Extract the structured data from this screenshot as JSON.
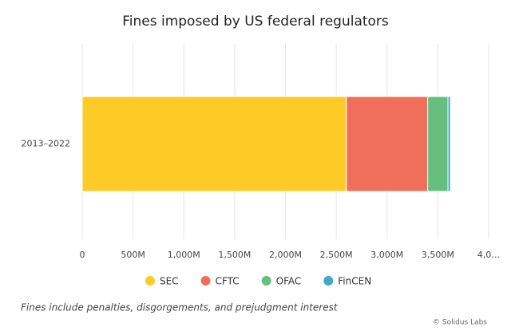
{
  "chart_data": {
    "type": "bar",
    "orientation": "horizontal",
    "stacked": true,
    "title": "Fines imposed by US federal regulators",
    "categories": [
      "2013–2022"
    ],
    "series": [
      {
        "name": "SEC",
        "color": "#fdca26",
        "values": [
          2600
        ]
      },
      {
        "name": "CFTC",
        "color": "#ef6f5a",
        "values": [
          800
        ]
      },
      {
        "name": "OFAC",
        "color": "#66bf7f",
        "values": [
          200
        ]
      },
      {
        "name": "FinCEN",
        "color": "#3fa9c9",
        "values": [
          24
        ]
      }
    ],
    "xlim": [
      0,
      4000
    ],
    "xticks": [
      0,
      {
        "value": 500,
        "label": "500M"
      },
      {
        "value": 1000,
        "label": "1,000M"
      },
      {
        "value": 1500,
        "label": "1,500M"
      },
      {
        "value": 2000,
        "label": "2,000M"
      },
      {
        "value": 2500,
        "label": "2,500M"
      },
      {
        "value": 3000,
        "label": "3,000M"
      },
      {
        "value": 3500,
        "label": "3,500M"
      },
      {
        "value": 4000,
        "label": "4,0…"
      }
    ],
    "grid": true,
    "legend": "bottom",
    "note": "Fines include penalties, disgorgements, and prejudgment interest",
    "credit": "© Solidus Labs"
  }
}
